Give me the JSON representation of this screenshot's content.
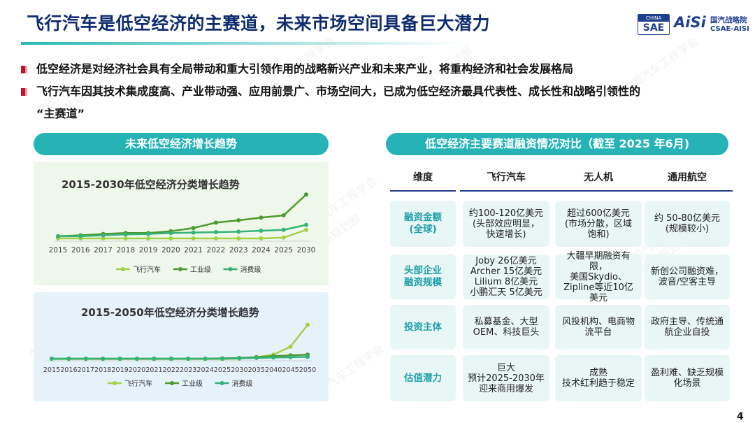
{
  "title": "飞行汽车是低空经济的主赛道，未来市场空间具备巨大潜力",
  "logo": {
    "sae_top": "CHINA",
    "sae_main": "SAE",
    "aisi": "AiSi",
    "cn": "国汽战略院",
    "en": "CSAE-AISI"
  },
  "bullets": [
    "低空经济是对经济社会具有全局带动和重大引领作用的战略新兴产业和未来产业，将重构经济和社会发展格局",
    "飞行汽车因其技术集成度高、产业带动强、应用前景广、市场空间大，已成为低空经济最具代表性、成长性和战略引领性的",
    "“主赛道”"
  ],
  "left_header": "未来低空经济增长趋势",
  "right_header": "低空经济主要赛道融资情况对比（截至 2025 年6月)",
  "watermark": [
    "中国汽车工程学会",
    "战略规划部"
  ],
  "colors": {
    "accent": "#25b3b5",
    "navy": "#0f2d6e",
    "flying_car": "#a3d14a",
    "industrial": "#4d9a2c",
    "consumer": "#35b27a"
  },
  "chart_data": [
    {
      "type": "line",
      "title": "2015-2030年低空经济分类增长趋势",
      "categories": [
        "2015",
        "2016",
        "2017",
        "2018",
        "2019",
        "2020",
        "2021",
        "2022",
        "2023",
        "2024",
        "2025",
        "2030"
      ],
      "series": [
        {
          "name": "飞行汽车",
          "values": [
            0.3,
            0.3,
            0.3,
            0.3,
            0.3,
            0.3,
            0.3,
            0.3,
            0.3,
            0.3,
            0.5,
            2.2
          ]
        },
        {
          "name": "工业级",
          "values": [
            0.8,
            1.0,
            1.3,
            1.5,
            1.5,
            1.9,
            2.6,
            3.8,
            4.3,
            4.9,
            5.4,
            10.0
          ]
        },
        {
          "name": "消费级",
          "values": [
            0.8,
            0.8,
            1.0,
            1.2,
            1.3,
            1.5,
            1.6,
            1.7,
            1.8,
            2.0,
            2.2,
            3.3
          ]
        }
      ],
      "ylim": [
        0,
        10.5
      ],
      "legend": "bottom"
    },
    {
      "type": "line",
      "title": "2015-2050年低空经济分类增长趋势",
      "categories": [
        "2015",
        "2016",
        "2017",
        "2018",
        "2019",
        "2020",
        "2021",
        "2022",
        "2023",
        "2024",
        "2025",
        "2030",
        "2035",
        "2040",
        "2045",
        "2050"
      ],
      "series": [
        {
          "name": "飞行汽车",
          "values": [
            0.1,
            0.1,
            0.1,
            0.1,
            0.1,
            0.1,
            0.1,
            0.1,
            0.1,
            0.1,
            0.1,
            0.2,
            0.6,
            1.3,
            3.5,
            9.5
          ]
        },
        {
          "name": "工业级",
          "values": [
            0.2,
            0.2,
            0.2,
            0.2,
            0.2,
            0.2,
            0.2,
            0.2,
            0.2,
            0.2,
            0.3,
            0.4,
            0.6,
            0.9,
            1.1,
            1.3
          ]
        },
        {
          "name": "消费级",
          "values": [
            0.2,
            0.2,
            0.2,
            0.2,
            0.2,
            0.2,
            0.2,
            0.2,
            0.2,
            0.2,
            0.2,
            0.3,
            0.4,
            0.5,
            0.6,
            0.7
          ]
        }
      ],
      "ylim": [
        0,
        10
      ],
      "legend": "bottom"
    }
  ],
  "table": {
    "headers": [
      "维度",
      "飞行汽车",
      "无人机",
      "通用航空"
    ],
    "rows": [
      [
        "融资金额\n(全球)",
        "约100-120亿美元\n(头部效应明显，\n快速增长)",
        "超过600亿美元\n(市场分散，区域\n饱和)",
        "约 50-80亿美元\n(规模较小)"
      ],
      [
        "头部企业\n融资规模",
        "Joby 26亿美元\nArcher 15亿美元\nLilium 8亿美元\n小鹏汇天 5亿美元",
        "大疆早期融资有限，\n美国Skydio、\nZipline等近10亿\n美元",
        "新创公司融资难，\n波音/空客主导"
      ],
      [
        "投资主体",
        "私募基金、大型\nOEM、科技巨头",
        "风投机构、电商物\n流平台",
        "政府主导、传统通\n航企业自投"
      ],
      [
        "估值潜力",
        "巨大\n预计2025-2030年\n迎来商用爆发",
        "成熟\n技术红利趋于稳定",
        "盈利难、缺乏规模\n化场景"
      ]
    ]
  },
  "page_number": "4"
}
